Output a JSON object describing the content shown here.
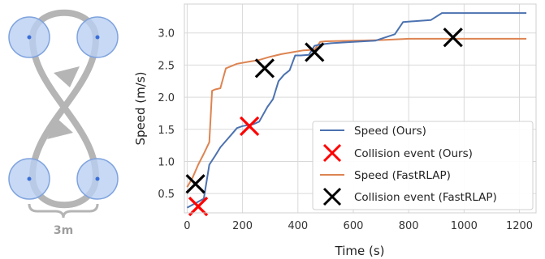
{
  "track_diagram": {
    "scale_label": "3m",
    "colors": {
      "path": "#b5b5b5",
      "circle_fill": "#b9d0f3",
      "circle_stroke": "#7fa3de",
      "dot": "#3a6fd8",
      "brace": "#b5b5b5"
    }
  },
  "chart_data": {
    "type": "line",
    "xlabel": "Time (s)",
    "ylabel": "Speed (m/s)",
    "xlim": [
      -10,
      1260
    ],
    "ylim": [
      0.2,
      3.45
    ],
    "xticks": [
      0,
      200,
      400,
      600,
      800,
      1000,
      1200
    ],
    "yticks": [
      0.5,
      1.0,
      1.5,
      2.0,
      2.5,
      3.0
    ],
    "ytick_labels": [
      "0.5",
      "1.0",
      "1.5",
      "2.0",
      "2.5",
      "3.0"
    ],
    "grid": true,
    "legend_position": "lower-right",
    "series": [
      {
        "name": "Speed (Ours)",
        "kind": "line",
        "color": "#4c72b0",
        "x": [
          0,
          30,
          60,
          80,
          100,
          120,
          140,
          160,
          180,
          200,
          240,
          260,
          290,
          310,
          330,
          350,
          370,
          390,
          410,
          440,
          460,
          480,
          520,
          600,
          680,
          750,
          780,
          880,
          920,
          1000,
          1100,
          1225
        ],
        "y": [
          0.28,
          0.35,
          0.42,
          0.95,
          1.08,
          1.22,
          1.32,
          1.42,
          1.52,
          1.55,
          1.58,
          1.62,
          1.85,
          1.97,
          2.25,
          2.35,
          2.42,
          2.65,
          2.65,
          2.66,
          2.8,
          2.82,
          2.84,
          2.86,
          2.88,
          2.98,
          3.17,
          3.2,
          3.31,
          3.31,
          3.31,
          3.31
        ]
      },
      {
        "name": "Collision event (Ours)",
        "kind": "marker",
        "color": "#ff0000",
        "x": [
          40,
          225
        ],
        "y": [
          0.3,
          1.55
        ]
      },
      {
        "name": "Speed (FastRLAP)",
        "kind": "line",
        "color": "#dd8452",
        "x": [
          0,
          20,
          40,
          60,
          80,
          90,
          100,
          120,
          140,
          180,
          220,
          260,
          300,
          340,
          380,
          420,
          460,
          480,
          500,
          600,
          700,
          800,
          1000,
          1225
        ],
        "y": [
          0.6,
          0.75,
          0.95,
          1.12,
          1.3,
          2.1,
          2.12,
          2.14,
          2.45,
          2.52,
          2.55,
          2.58,
          2.63,
          2.67,
          2.7,
          2.73,
          2.74,
          2.86,
          2.87,
          2.88,
          2.89,
          2.91,
          2.91,
          2.91
        ]
      },
      {
        "name": "Collision event (FastRLAP)",
        "kind": "marker",
        "color": "#000000",
        "x": [
          30,
          280,
          460,
          960
        ],
        "y": [
          0.65,
          2.45,
          2.7,
          2.93
        ]
      }
    ]
  }
}
